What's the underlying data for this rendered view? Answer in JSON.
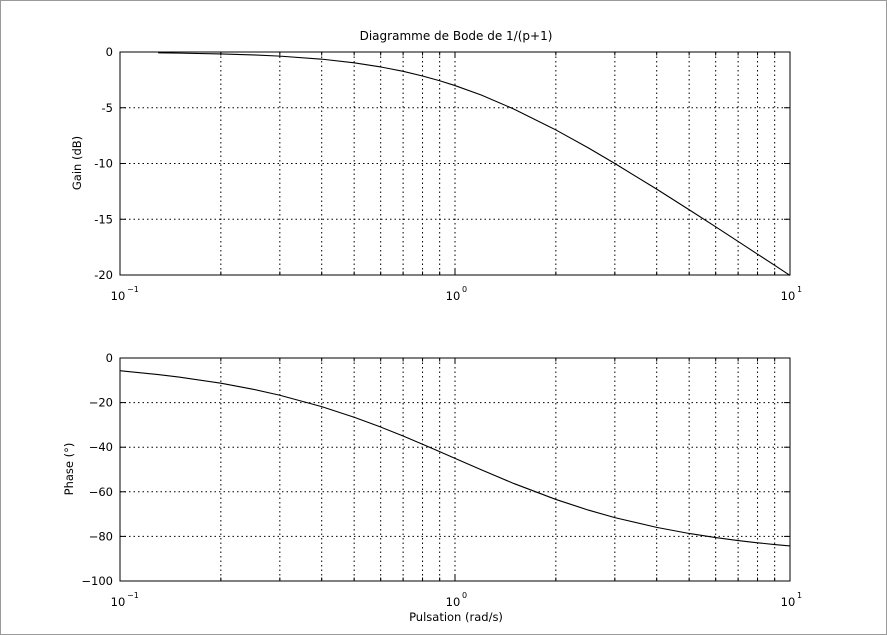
{
  "window": {
    "title": "Diagramme de Bode de 1/(p+1)"
  },
  "chart_data": [
    {
      "type": "line",
      "title": "Diagramme de Bode de 1/(p+1)",
      "xlabel": "",
      "ylabel": "Gain (dB)",
      "xscale": "log",
      "xlim": [
        0.1,
        10
      ],
      "ylim": [
        -20,
        0
      ],
      "grid": true,
      "yticks": [
        0,
        -5,
        -10,
        -15,
        -20
      ],
      "ytick_labels": [
        "0",
        "-5",
        "-10",
        "-15",
        "-20"
      ],
      "xticks": [
        0.1,
        1,
        10
      ],
      "xtick_labels": [
        {
          "base": "10",
          "exp": "−1"
        },
        {
          "base": "10",
          "exp": "0"
        },
        {
          "base": "10",
          "exp": "1"
        }
      ],
      "series": [
        {
          "x": [
            0.13,
            0.15,
            0.2,
            0.25,
            0.3,
            0.4,
            0.5,
            0.6,
            0.7,
            0.8,
            0.9,
            1.0,
            1.2,
            1.5,
            2.0,
            2.5,
            3.0,
            4.0,
            5.0,
            6.0,
            7.0,
            8.0,
            9.0,
            10.0
          ],
          "values": [
            -0.07,
            -0.1,
            -0.17,
            -0.26,
            -0.37,
            -0.64,
            -0.97,
            -1.34,
            -1.73,
            -2.15,
            -2.58,
            -3.01,
            -3.87,
            -5.12,
            -6.99,
            -8.6,
            -10.0,
            -12.3,
            -14.15,
            -15.68,
            -16.99,
            -18.13,
            -19.13,
            -20.04
          ]
        }
      ]
    },
    {
      "type": "line",
      "title": "",
      "xlabel": "Pulsation (rad/s)",
      "ylabel": "Phase (°)",
      "xscale": "log",
      "xlim": [
        0.1,
        10
      ],
      "ylim": [
        -100,
        0
      ],
      "grid": true,
      "yticks": [
        0,
        -20,
        -40,
        -60,
        -80,
        -100
      ],
      "ytick_labels": [
        "0",
        "−20",
        "−40",
        "−60",
        "−80",
        "−100"
      ],
      "xticks": [
        0.1,
        1,
        10
      ],
      "xtick_labels": [
        {
          "base": "10",
          "exp": "−1"
        },
        {
          "base": "10",
          "exp": "0"
        },
        {
          "base": "10",
          "exp": "1"
        }
      ],
      "series": [
        {
          "x": [
            0.1,
            0.13,
            0.15,
            0.2,
            0.25,
            0.3,
            0.4,
            0.5,
            0.6,
            0.7,
            0.8,
            0.9,
            1.0,
            1.2,
            1.5,
            2.0,
            2.5,
            3.0,
            4.0,
            5.0,
            6.0,
            7.0,
            8.0,
            9.0,
            10.0
          ],
          "values": [
            -5.71,
            -7.41,
            -8.53,
            -11.31,
            -14.04,
            -16.7,
            -21.8,
            -26.57,
            -30.96,
            -34.99,
            -38.66,
            -41.99,
            -45.0,
            -50.19,
            -56.31,
            -63.43,
            -68.2,
            -71.57,
            -75.96,
            -78.69,
            -80.54,
            -81.87,
            -82.87,
            -83.66,
            -84.29
          ]
        }
      ]
    }
  ]
}
